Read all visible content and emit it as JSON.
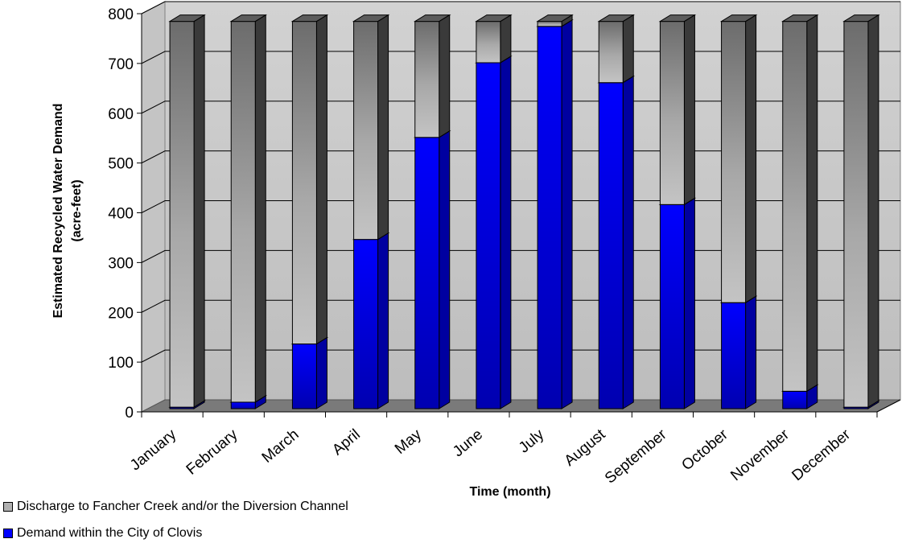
{
  "chart_data": {
    "type": "bar",
    "stacked": true,
    "three_d": true,
    "categories": [
      "January",
      "February",
      "March",
      "April",
      "May",
      "June",
      "July",
      "August",
      "September",
      "October",
      "November",
      "December"
    ],
    "ylabel_line1": "Estimated Recycled Water Demand",
    "ylabel_line2": "(acre-feet)",
    "xlabel": "Time (month)",
    "ylim": [
      0,
      800
    ],
    "yticks": [
      "0",
      "100",
      "200",
      "300",
      "400",
      "500",
      "600",
      "700",
      "800"
    ],
    "grid": true,
    "legend_position": "bottom-left",
    "series": [
      {
        "name": "Demand within the City of Clovis",
        "color": "#0000ff",
        "values": [
          3,
          13,
          130,
          340,
          545,
          695,
          768,
          655,
          410,
          213,
          35,
          3
        ]
      },
      {
        "name": "Discharge to Fancher Creek and/or the Diversion Channel",
        "color": "#b0b0b0",
        "values": [
          775,
          765,
          648,
          438,
          233,
          83,
          10,
          123,
          368,
          565,
          743,
          775
        ]
      }
    ]
  }
}
